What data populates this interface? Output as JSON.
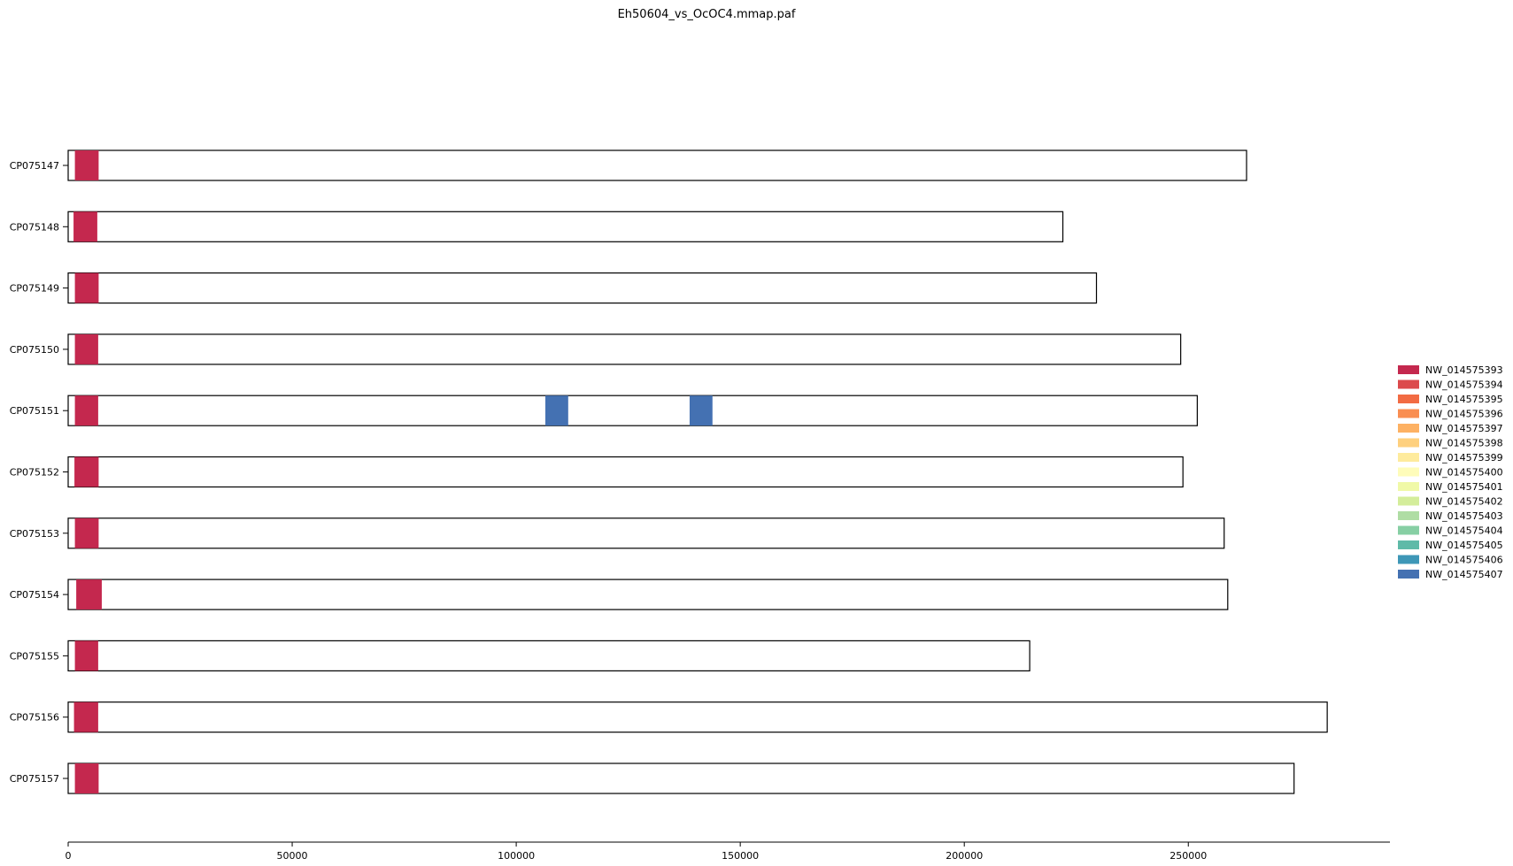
{
  "chart_data": {
    "type": "bar",
    "title": "Eh50604_vs_OcOC4.mmap.paf",
    "xlabel": "",
    "ylabel": "",
    "xlim": [
      0,
      295000
    ],
    "xticks": [
      0,
      50000,
      100000,
      150000,
      200000,
      250000
    ],
    "xtick_labels": [
      "0",
      "50000",
      "100000",
      "150000",
      "200000",
      "250000"
    ],
    "grid": false,
    "legend_position": "center-right",
    "categories": [
      "CP075147",
      "CP075148",
      "CP075149",
      "CP075150",
      "CP075151",
      "CP075152",
      "CP075153",
      "CP075154",
      "CP075155",
      "CP075156",
      "CP075157"
    ],
    "lengths": [
      263000,
      222000,
      229500,
      248300,
      252000,
      248800,
      258000,
      258800,
      214600,
      281000,
      273600
    ],
    "segments": [
      {
        "row": "CP075147",
        "start": 1500,
        "end": 6800,
        "match": "NW_014575393"
      },
      {
        "row": "CP075148",
        "start": 1200,
        "end": 6500,
        "match": "NW_014575393"
      },
      {
        "row": "CP075149",
        "start": 1500,
        "end": 6800,
        "match": "NW_014575393"
      },
      {
        "row": "CP075150",
        "start": 1500,
        "end": 6700,
        "match": "NW_014575393"
      },
      {
        "row": "CP075151",
        "start": 1500,
        "end": 6700,
        "match": "NW_014575393"
      },
      {
        "row": "CP075151",
        "start": 106500,
        "end": 111600,
        "match": "NW_014575407"
      },
      {
        "row": "CP075151",
        "start": 138700,
        "end": 143800,
        "match": "NW_014575407"
      },
      {
        "row": "CP075152",
        "start": 1400,
        "end": 6800,
        "match": "NW_014575393"
      },
      {
        "row": "CP075153",
        "start": 1500,
        "end": 6800,
        "match": "NW_014575393"
      },
      {
        "row": "CP075154",
        "start": 1800,
        "end": 7500,
        "match": "NW_014575393"
      },
      {
        "row": "CP075155",
        "start": 1500,
        "end": 6700,
        "match": "NW_014575393"
      },
      {
        "row": "CP075156",
        "start": 1300,
        "end": 6700,
        "match": "NW_014575393"
      },
      {
        "row": "CP075157",
        "start": 1500,
        "end": 6800,
        "match": "NW_014575393"
      }
    ],
    "legend": [
      {
        "name": "NW_014575393",
        "color": "#c4284e"
      },
      {
        "name": "NW_014575394",
        "color": "#dc4a4c"
      },
      {
        "name": "NW_014575395",
        "color": "#f26b43"
      },
      {
        "name": "NW_014575396",
        "color": "#f98e52"
      },
      {
        "name": "NW_014575397",
        "color": "#fdb163"
      },
      {
        "name": "NW_014575398",
        "color": "#fed07e"
      },
      {
        "name": "NW_014575399",
        "color": "#feeb9d"
      },
      {
        "name": "NW_014575400",
        "color": "#fefcba"
      },
      {
        "name": "NW_014575401",
        "color": "#f0f9a7"
      },
      {
        "name": "NW_014575402",
        "color": "#d4ed9b"
      },
      {
        "name": "NW_014575403",
        "color": "#afdda4"
      },
      {
        "name": "NW_014575404",
        "color": "#87cfa4"
      },
      {
        "name": "NW_014575405",
        "color": "#5fbaa8"
      },
      {
        "name": "NW_014575406",
        "color": "#3e97b7"
      },
      {
        "name": "NW_014575407",
        "color": "#4471b2"
      }
    ]
  }
}
